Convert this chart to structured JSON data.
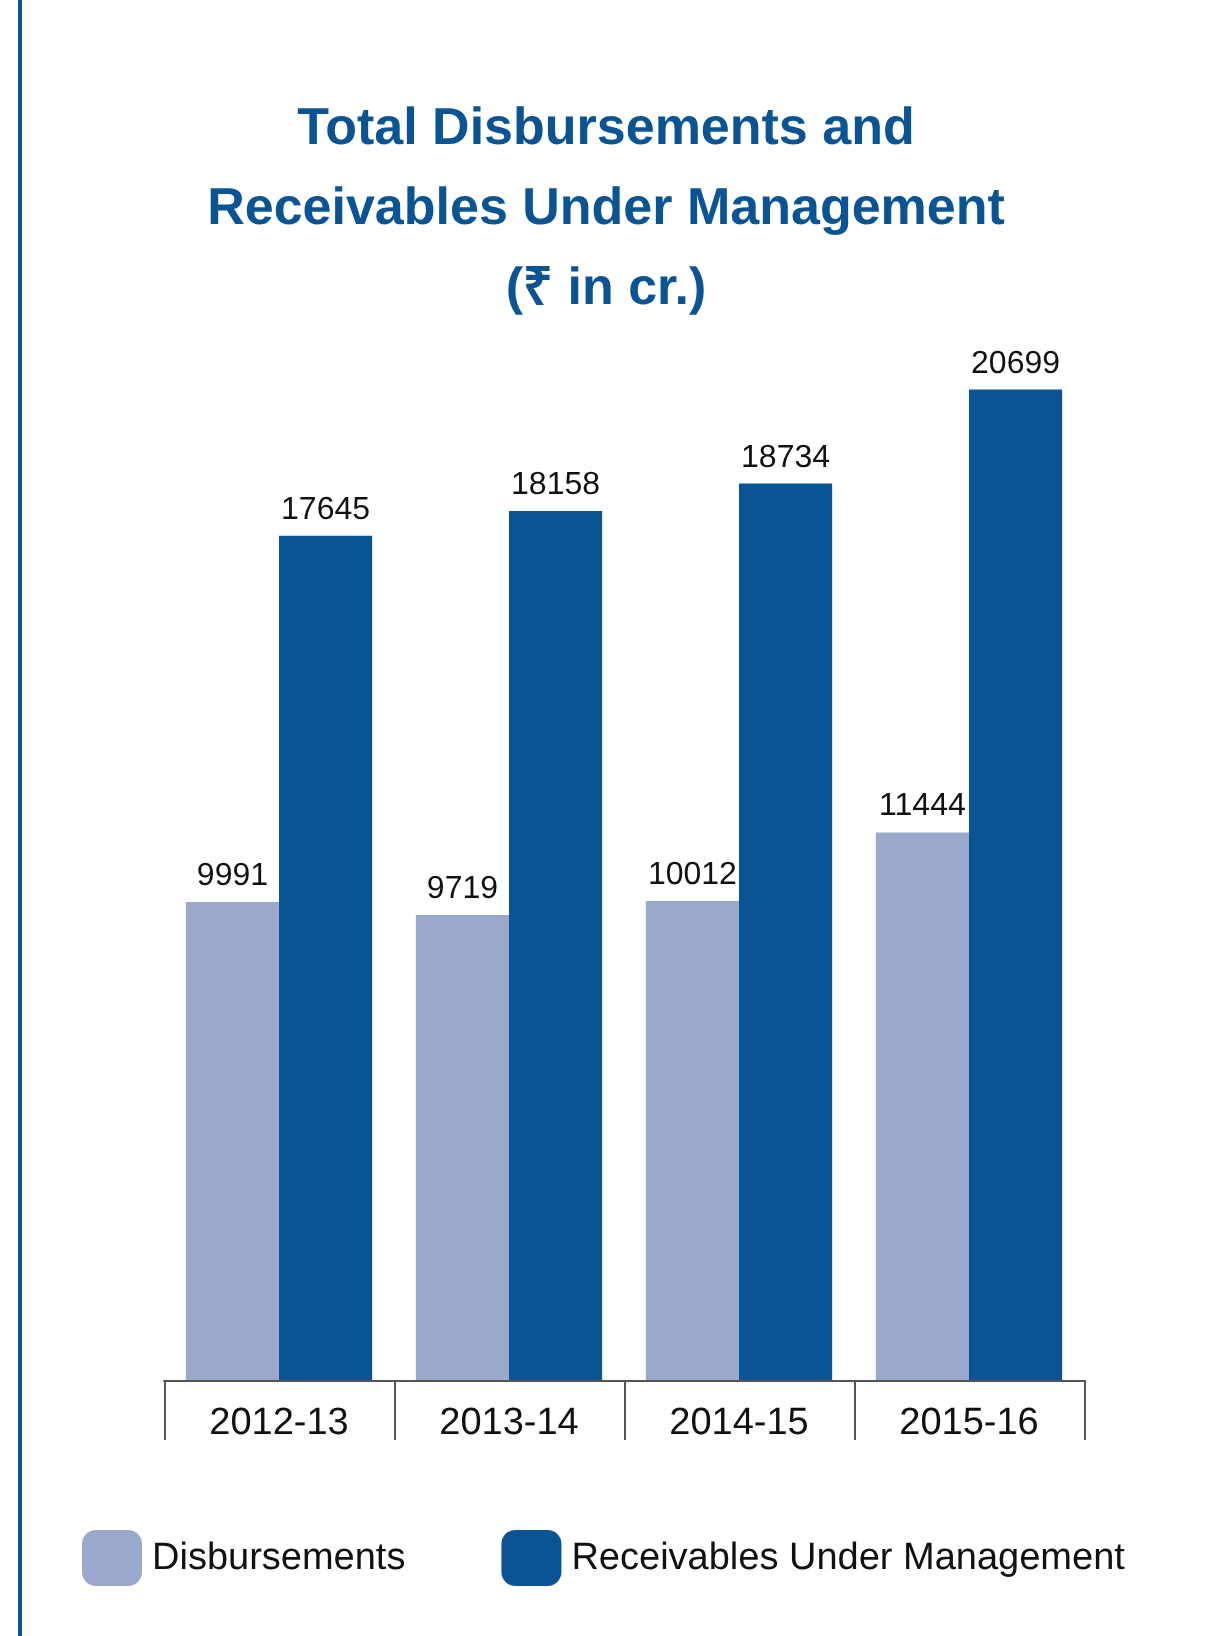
{
  "chart_data": {
    "type": "bar",
    "title": "Total Disbursements and\nReceivables Under Management\n(₹ in cr.)",
    "categories": [
      "2012-13",
      "2013-14",
      "2014-15",
      "2015-16"
    ],
    "series": [
      {
        "name": "Disbursements",
        "color": "#9aa8cc",
        "values": [
          9991,
          9719,
          10012,
          11444
        ]
      },
      {
        "name": "Receivables Under Management",
        "color": "#0a5494",
        "values": [
          17645,
          18158,
          18734,
          20699
        ]
      }
    ],
    "data_labels": true,
    "legend": "bottom",
    "grid": false
  }
}
